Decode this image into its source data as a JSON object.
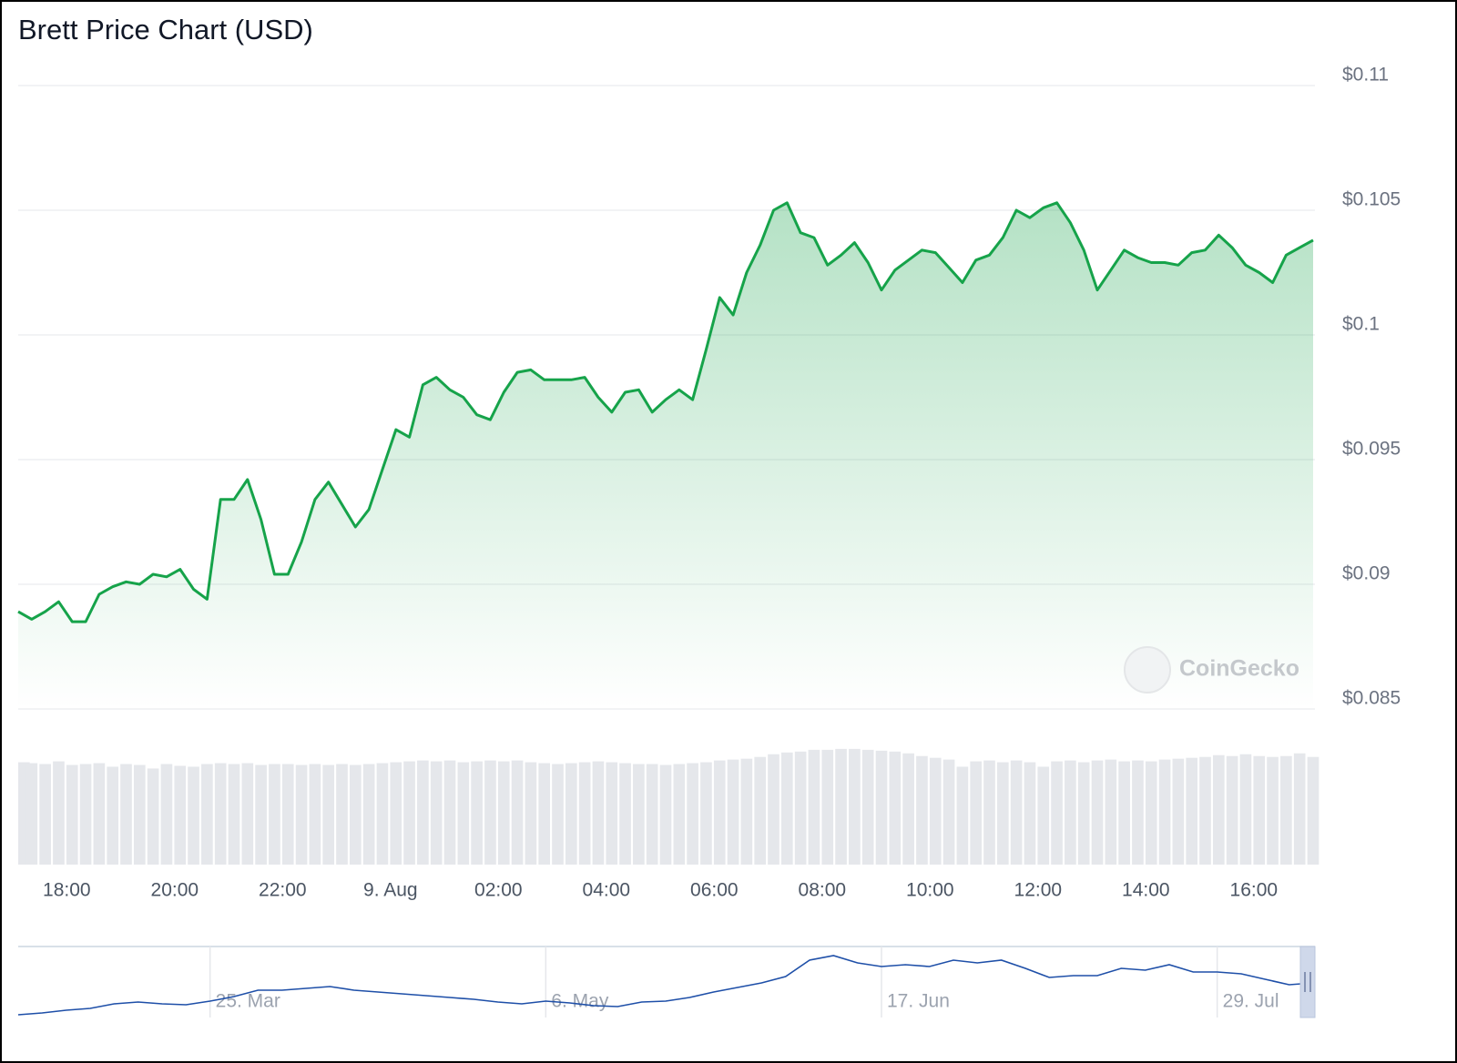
{
  "chart_data": [
    {
      "type": "line",
      "title": "Brett Price Chart (USD)",
      "watermark": "CoinGecko",
      "color": "#16a34a",
      "volume_color": "#e5e7eb",
      "x": [
        17.1,
        17.35,
        17.6,
        17.85,
        18.1,
        18.35,
        18.6,
        18.85,
        19.1,
        19.35,
        19.6,
        19.85,
        20.1,
        20.35,
        20.6,
        20.85,
        21.1,
        21.35,
        21.6,
        21.85,
        22.1,
        22.35,
        22.6,
        22.85,
        23.1,
        23.35,
        23.6,
        23.85,
        24.1,
        24.35,
        24.6,
        24.85,
        25.1,
        25.35,
        25.6,
        25.85,
        26.1,
        26.35,
        26.6,
        26.85,
        27.1,
        27.35,
        27.6,
        27.85,
        28.1,
        28.35,
        28.6,
        28.85,
        29.1,
        29.35,
        29.6,
        29.85,
        30.1,
        30.35,
        30.6,
        30.85,
        31.1,
        31.35,
        31.6,
        31.85,
        32.1,
        32.35,
        32.6,
        32.85,
        33.1,
        33.35,
        33.6,
        33.85,
        34.1,
        34.35,
        34.6,
        34.85,
        35.1,
        35.35,
        35.6,
        35.85,
        36.1,
        36.35,
        36.6,
        36.85,
        37.1,
        37.35,
        37.6,
        37.85,
        38.1,
        38.35,
        38.6,
        38.85,
        39.1,
        39.35,
        39.6,
        39.85,
        40.1,
        40.35,
        40.6,
        40.85,
        41.1
      ],
      "values": [
        0.0889,
        0.0886,
        0.0889,
        0.0893,
        0.0885,
        0.0885,
        0.0896,
        0.0899,
        0.0901,
        0.09,
        0.0904,
        0.0903,
        0.0906,
        0.0898,
        0.0894,
        0.0934,
        0.0934,
        0.0942,
        0.0926,
        0.0904,
        0.0904,
        0.0917,
        0.0934,
        0.0941,
        0.0932,
        0.0923,
        0.093,
        0.0946,
        0.0962,
        0.0959,
        0.098,
        0.0983,
        0.0978,
        0.0975,
        0.0968,
        0.0966,
        0.0977,
        0.0985,
        0.0986,
        0.0982,
        0.0982,
        0.0982,
        0.0983,
        0.0975,
        0.0969,
        0.0977,
        0.0978,
        0.0969,
        0.0974,
        0.0978,
        0.0974,
        0.0994,
        0.1015,
        0.1008,
        0.1025,
        0.1036,
        0.105,
        0.1053,
        0.1041,
        0.1039,
        0.1028,
        0.1032,
        0.1037,
        0.1029,
        0.1018,
        0.1026,
        0.103,
        0.1034,
        0.1033,
        0.1027,
        0.1021,
        0.103,
        0.1032,
        0.1039,
        0.105,
        0.1047,
        0.1051,
        0.1053,
        0.1045,
        0.1034,
        0.1018,
        0.1026,
        0.1034,
        0.1031,
        0.1029,
        0.1029,
        0.1028,
        0.1033,
        0.1034,
        0.104,
        0.1035,
        0.1028,
        0.1025,
        0.1021,
        0.1032,
        0.1035,
        0.1038
      ],
      "volume": [
        115,
        114,
        113,
        116,
        112,
        113,
        114,
        110,
        113,
        112,
        108,
        113,
        111,
        110,
        113,
        114,
        113,
        114,
        112,
        113,
        113,
        112,
        113,
        112,
        113,
        112,
        113,
        114,
        115,
        116,
        117,
        116,
        117,
        115,
        116,
        117,
        116,
        117,
        115,
        114,
        113,
        114,
        115,
        116,
        115,
        114,
        113,
        113,
        112,
        113,
        114,
        115,
        117,
        118,
        119,
        121,
        124,
        126,
        127,
        129,
        129,
        130,
        130,
        129,
        128,
        127,
        125,
        122,
        120,
        118,
        110,
        116,
        117,
        115,
        117,
        115,
        110,
        116,
        117,
        115,
        117,
        118,
        116,
        117,
        116,
        118,
        119,
        120,
        121,
        123,
        122,
        124,
        122,
        121,
        122,
        125,
        121
      ],
      "volume_lim": [
        0,
        135
      ],
      "xlim": [
        17.1,
        41.1
      ],
      "xticks": [
        {
          "value": 18,
          "label": "18:00"
        },
        {
          "value": 20,
          "label": "20:00"
        },
        {
          "value": 22,
          "label": "22:00"
        },
        {
          "value": 24,
          "label": "9. Aug"
        },
        {
          "value": 26,
          "label": "02:00"
        },
        {
          "value": 28,
          "label": "04:00"
        },
        {
          "value": 30,
          "label": "06:00"
        },
        {
          "value": 32,
          "label": "08:00"
        },
        {
          "value": 34,
          "label": "10:00"
        },
        {
          "value": 36,
          "label": "12:00"
        },
        {
          "value": 38,
          "label": "14:00"
        },
        {
          "value": 40,
          "label": "16:00"
        }
      ],
      "ylim": [
        0.085,
        0.11
      ],
      "yticks": [
        {
          "value": 0.11,
          "label": "$0.11"
        },
        {
          "value": 0.105,
          "label": "$0.105"
        },
        {
          "value": 0.1,
          "label": "$0.1"
        },
        {
          "value": 0.095,
          "label": "$0.095"
        },
        {
          "value": 0.09,
          "label": "$0.09"
        },
        {
          "value": 0.085,
          "label": "$0.085"
        }
      ],
      "grid": true
    },
    {
      "type": "line",
      "color": "#1e4fa8",
      "categories": [
        null,
        null,
        null,
        null,
        null,
        null,
        null,
        null,
        "25. Mar",
        null,
        null,
        null,
        null,
        null,
        null,
        null,
        null,
        null,
        null,
        null,
        null,
        null,
        "6. May",
        null,
        null,
        null,
        null,
        null,
        null,
        null,
        null,
        null,
        null,
        null,
        null,
        null,
        "17. Jun",
        null,
        null,
        null,
        null,
        null,
        null,
        null,
        null,
        null,
        null,
        null,
        null,
        null,
        "29. Jul",
        null,
        null,
        null,
        null
      ],
      "values": [
        3,
        5,
        8,
        10,
        15,
        17,
        15,
        14,
        18,
        23,
        30,
        30,
        32,
        34,
        30,
        28,
        26,
        24,
        22,
        20,
        17,
        15,
        18,
        16,
        13,
        12,
        17,
        18,
        22,
        28,
        33,
        38,
        45,
        63,
        68,
        60,
        56,
        58,
        56,
        63,
        60,
        63,
        54,
        44,
        46,
        46,
        54,
        52,
        58,
        50,
        50,
        48,
        42,
        36,
        38
      ],
      "ylim": [
        0,
        78
      ]
    }
  ]
}
